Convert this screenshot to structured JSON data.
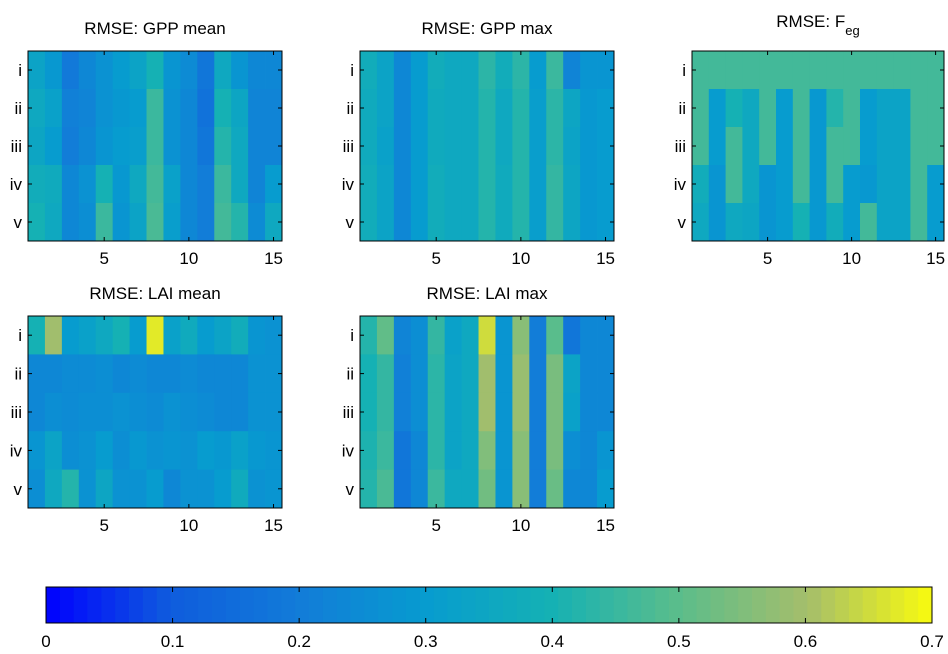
{
  "chart_data": [
    {
      "type": "heatmap",
      "title": "RMSE: GPP mean",
      "title_sub": "",
      "x_ticks": [
        5,
        10,
        15
      ],
      "y_labels": [
        "i",
        "ii",
        "iii",
        "iv",
        "v"
      ],
      "values": [
        [
          0.33,
          0.29,
          0.19,
          0.23,
          0.27,
          0.3,
          0.33,
          0.4,
          0.28,
          0.25,
          0.18,
          0.35,
          0.28,
          0.23,
          0.23
        ],
        [
          0.35,
          0.32,
          0.21,
          0.22,
          0.27,
          0.29,
          0.3,
          0.45,
          0.27,
          0.23,
          0.17,
          0.4,
          0.34,
          0.22,
          0.22
        ],
        [
          0.34,
          0.3,
          0.2,
          0.23,
          0.28,
          0.3,
          0.31,
          0.45,
          0.27,
          0.23,
          0.18,
          0.42,
          0.35,
          0.22,
          0.22
        ],
        [
          0.38,
          0.37,
          0.24,
          0.27,
          0.4,
          0.29,
          0.35,
          0.47,
          0.32,
          0.24,
          0.2,
          0.45,
          0.36,
          0.22,
          0.3
        ],
        [
          0.4,
          0.36,
          0.23,
          0.26,
          0.45,
          0.28,
          0.33,
          0.48,
          0.31,
          0.23,
          0.2,
          0.47,
          0.42,
          0.25,
          0.35
        ]
      ]
    },
    {
      "type": "heatmap",
      "title": "RMSE: GPP max",
      "title_sub": "",
      "x_ticks": [
        5,
        10,
        15
      ],
      "y_labels": [
        "i",
        "ii",
        "iii",
        "iv",
        "v"
      ],
      "values": [
        [
          0.38,
          0.33,
          0.23,
          0.3,
          0.38,
          0.36,
          0.36,
          0.43,
          0.38,
          0.43,
          0.3,
          0.45,
          0.22,
          0.28,
          0.28
        ],
        [
          0.37,
          0.33,
          0.24,
          0.3,
          0.37,
          0.36,
          0.36,
          0.42,
          0.36,
          0.42,
          0.31,
          0.43,
          0.34,
          0.29,
          0.3
        ],
        [
          0.37,
          0.32,
          0.24,
          0.3,
          0.37,
          0.36,
          0.35,
          0.42,
          0.36,
          0.42,
          0.31,
          0.43,
          0.33,
          0.29,
          0.3
        ],
        [
          0.38,
          0.33,
          0.24,
          0.3,
          0.38,
          0.36,
          0.36,
          0.42,
          0.37,
          0.42,
          0.31,
          0.44,
          0.34,
          0.29,
          0.3
        ],
        [
          0.38,
          0.33,
          0.24,
          0.3,
          0.38,
          0.36,
          0.36,
          0.42,
          0.37,
          0.42,
          0.31,
          0.44,
          0.34,
          0.29,
          0.3
        ]
      ]
    },
    {
      "type": "heatmap",
      "title": "RMSE: F",
      "title_sub": "eg",
      "x_ticks": [
        5,
        10,
        15
      ],
      "y_labels": [
        "i",
        "ii",
        "iii",
        "iv",
        "v"
      ],
      "values": [
        [
          0.46,
          0.46,
          0.46,
          0.46,
          0.46,
          0.46,
          0.46,
          0.46,
          0.46,
          0.46,
          0.46,
          0.46,
          0.46,
          0.46,
          0.46
        ],
        [
          0.46,
          0.3,
          0.4,
          0.36,
          0.46,
          0.3,
          0.46,
          0.29,
          0.42,
          0.46,
          0.3,
          0.33,
          0.33,
          0.46,
          0.46
        ],
        [
          0.46,
          0.3,
          0.46,
          0.36,
          0.46,
          0.3,
          0.46,
          0.29,
          0.46,
          0.46,
          0.3,
          0.33,
          0.33,
          0.46,
          0.46
        ],
        [
          0.38,
          0.28,
          0.46,
          0.36,
          0.28,
          0.3,
          0.46,
          0.29,
          0.46,
          0.3,
          0.29,
          0.33,
          0.33,
          0.46,
          0.3
        ],
        [
          0.36,
          0.28,
          0.36,
          0.34,
          0.28,
          0.3,
          0.4,
          0.29,
          0.38,
          0.3,
          0.46,
          0.33,
          0.33,
          0.46,
          0.3
        ]
      ]
    },
    {
      "type": "heatmap",
      "title": "RMSE: LAI mean",
      "title_sub": "",
      "x_ticks": [
        5,
        10,
        15
      ],
      "y_labels": [
        "i",
        "ii",
        "iii",
        "iv",
        "v"
      ],
      "values": [
        [
          0.4,
          0.6,
          0.3,
          0.32,
          0.35,
          0.4,
          0.3,
          0.67,
          0.32,
          0.37,
          0.3,
          0.33,
          0.38,
          0.28,
          0.27
        ],
        [
          0.24,
          0.24,
          0.25,
          0.25,
          0.26,
          0.24,
          0.25,
          0.24,
          0.24,
          0.25,
          0.24,
          0.24,
          0.23,
          0.27,
          0.27
        ],
        [
          0.24,
          0.26,
          0.25,
          0.26,
          0.26,
          0.27,
          0.26,
          0.25,
          0.27,
          0.26,
          0.25,
          0.24,
          0.24,
          0.27,
          0.27
        ],
        [
          0.28,
          0.33,
          0.26,
          0.27,
          0.3,
          0.26,
          0.29,
          0.27,
          0.28,
          0.27,
          0.3,
          0.29,
          0.32,
          0.29,
          0.28
        ],
        [
          0.26,
          0.36,
          0.42,
          0.27,
          0.34,
          0.27,
          0.27,
          0.3,
          0.24,
          0.27,
          0.27,
          0.3,
          0.37,
          0.27,
          0.28
        ]
      ]
    },
    {
      "type": "heatmap",
      "title": "RMSE: LAI max",
      "title_sub": "",
      "x_ticks": [
        5,
        10,
        15
      ],
      "y_labels": [
        "i",
        "ii",
        "iii",
        "iv",
        "v"
      ],
      "values": [
        [
          0.42,
          0.51,
          0.22,
          0.26,
          0.44,
          0.32,
          0.35,
          0.65,
          0.28,
          0.56,
          0.2,
          0.5,
          0.18,
          0.23,
          0.23
        ],
        [
          0.4,
          0.44,
          0.21,
          0.26,
          0.43,
          0.33,
          0.35,
          0.6,
          0.28,
          0.58,
          0.2,
          0.54,
          0.33,
          0.23,
          0.23
        ],
        [
          0.4,
          0.44,
          0.21,
          0.26,
          0.43,
          0.33,
          0.35,
          0.6,
          0.28,
          0.58,
          0.2,
          0.54,
          0.32,
          0.23,
          0.23
        ],
        [
          0.41,
          0.45,
          0.18,
          0.24,
          0.43,
          0.33,
          0.35,
          0.55,
          0.28,
          0.56,
          0.2,
          0.54,
          0.26,
          0.23,
          0.28
        ],
        [
          0.42,
          0.48,
          0.18,
          0.23,
          0.45,
          0.35,
          0.36,
          0.53,
          0.28,
          0.56,
          0.2,
          0.52,
          0.23,
          0.23,
          0.3
        ]
      ]
    }
  ],
  "colorbar": {
    "min": 0,
    "max": 0.7,
    "ticks": [
      "0",
      "0.1",
      "0.2",
      "0.3",
      "0.4",
      "0.5",
      "0.6",
      "0.7"
    ],
    "colormap": "parula",
    "levels": 64
  }
}
